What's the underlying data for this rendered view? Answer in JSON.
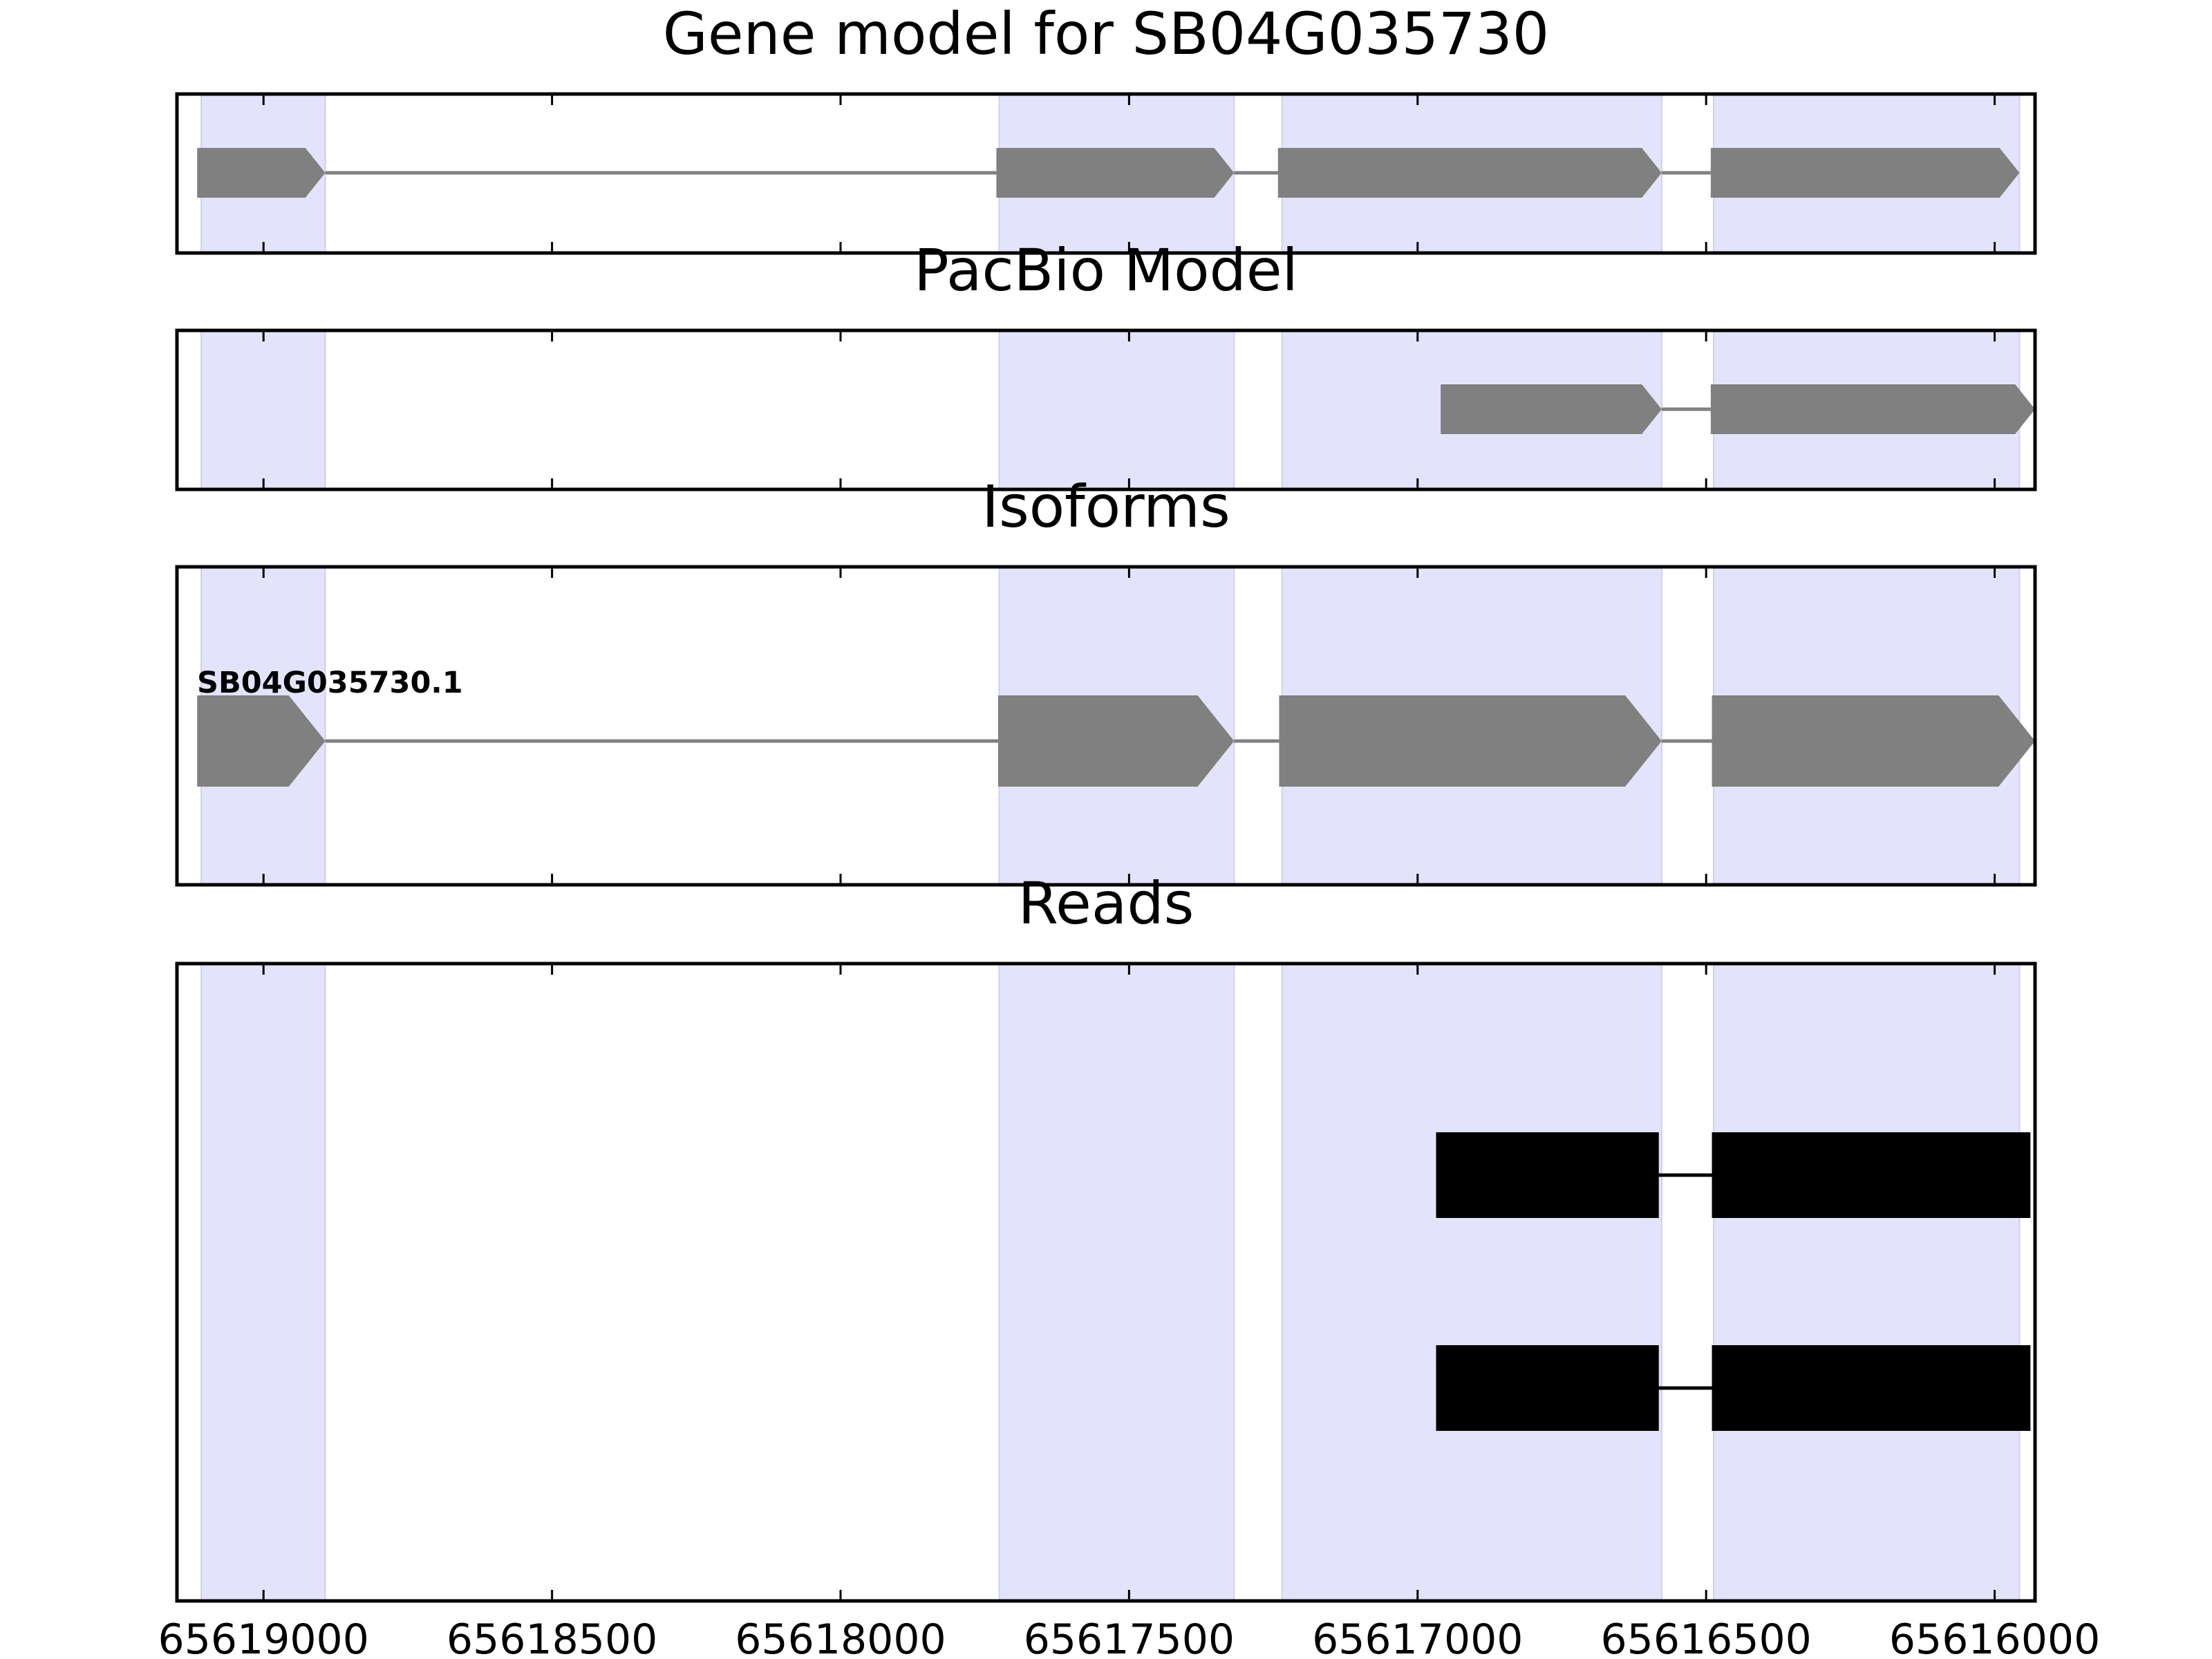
{
  "chart_data": {
    "type": "gene-track",
    "x_axis": {
      "range": [
        65619150,
        65615930
      ],
      "reversed": true,
      "ticks": [
        65619000,
        65618500,
        65618000,
        65617500,
        65617000,
        65616500,
        65616000
      ],
      "tick_labels": [
        "65619000",
        "65618500",
        "65618000",
        "65617500",
        "65617000",
        "65616500",
        "65616000"
      ]
    },
    "exon_shading": {
      "color": "#e3e3fc",
      "regions": [
        [
          65619108,
          65618893
        ],
        [
          65617725,
          65617318
        ],
        [
          65617235,
          65616577
        ],
        [
          65616487,
          65615957
        ]
      ]
    },
    "panels": [
      {
        "title": "Gene model for SB04G035730",
        "feature_color": "#808080",
        "tracks": [
          {
            "label": "",
            "exons": [
              [
                65619115,
                65618893
              ],
              [
                65617730,
                65617318
              ],
              [
                65617242,
                65616577
              ],
              [
                65616492,
                65615957
              ]
            ]
          }
        ]
      },
      {
        "title": "PacBio Model",
        "feature_color": "#808080",
        "tracks": [
          {
            "label": "",
            "exons": [
              [
                65616960,
                65616577
              ],
              [
                65616492,
                65615930
              ]
            ]
          }
        ]
      },
      {
        "title": "Isoforms",
        "feature_color": "#808080",
        "tracks": [
          {
            "label": "SB04G035730.1",
            "exons": [
              [
                65619115,
                65618893
              ],
              [
                65617727,
                65617318
              ],
              [
                65617240,
                65616577
              ],
              [
                65616490,
                65615930
              ]
            ]
          }
        ]
      },
      {
        "title": "Reads",
        "feature_color": "#000000",
        "tracks": [
          {
            "label": "",
            "exons": [
              [
                65616968,
                65616582
              ],
              [
                65616490,
                65615938
              ]
            ]
          },
          {
            "label": "",
            "exons": [
              [
                65616968,
                65616582
              ],
              [
                65616490,
                65615938
              ]
            ]
          }
        ]
      }
    ]
  }
}
